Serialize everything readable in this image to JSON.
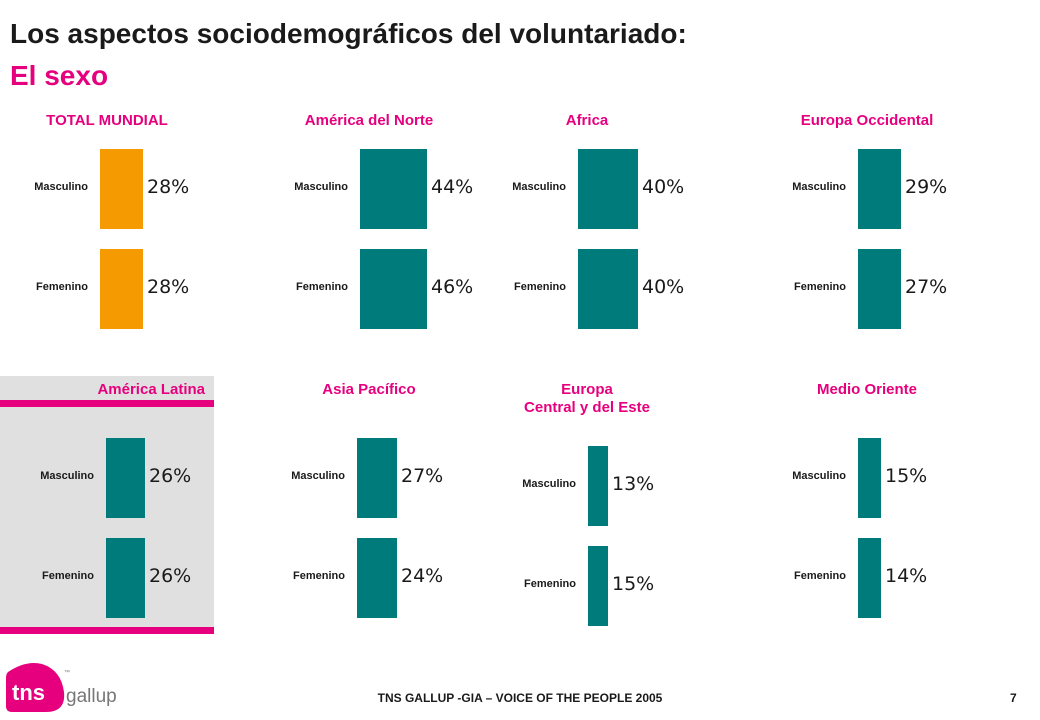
{
  "header": {
    "title": "Los aspectos sociodemográficos del voluntariado:",
    "subtitle": "El sexo"
  },
  "colors": {
    "accent": "#e6007e",
    "highlight_bar": "#f59a00",
    "bar": "#007b7b",
    "panel_highlight_bg": "#e0e0e0"
  },
  "chart_data": [
    {
      "type": "bar",
      "title": "TOTAL MUNDIAL",
      "categories": [
        "Masculino",
        "Femenino"
      ],
      "values": [
        28,
        28
      ],
      "value_labels": [
        "28%",
        "28%"
      ],
      "color": "#f59a00"
    },
    {
      "type": "bar",
      "title": "América del Norte",
      "categories": [
        "Masculino",
        "Femenino"
      ],
      "values": [
        44,
        46
      ],
      "value_labels": [
        "44%",
        "46%"
      ],
      "color": "#007b7b"
    },
    {
      "type": "bar",
      "title": "Africa",
      "categories": [
        "Masculino",
        "Femenino"
      ],
      "values": [
        40,
        40
      ],
      "value_labels": [
        "40%",
        "40%"
      ],
      "color": "#007b7b"
    },
    {
      "type": "bar",
      "title": "Europa Occidental",
      "categories": [
        "Masculino",
        "Femenino"
      ],
      "values": [
        29,
        27
      ],
      "value_labels": [
        "29%",
        "27%"
      ],
      "color": "#007b7b"
    },
    {
      "type": "bar",
      "title": "América Latina",
      "highlighted": true,
      "categories": [
        "Masculino",
        "Femenino"
      ],
      "values": [
        26,
        26
      ],
      "value_labels": [
        "26%",
        "26%"
      ],
      "color": "#007b7b"
    },
    {
      "type": "bar",
      "title": "Asia Pacífico",
      "categories": [
        "Masculino",
        "Femenino"
      ],
      "values": [
        27,
        24
      ],
      "value_labels": [
        "27%",
        "24%"
      ],
      "color": "#007b7b"
    },
    {
      "type": "bar",
      "title": "Europa\nCentral y del Este",
      "categories": [
        "Masculino",
        "Femenino"
      ],
      "values": [
        13,
        15
      ],
      "value_labels": [
        "13%",
        "15%"
      ],
      "color": "#007b7b"
    },
    {
      "type": "bar",
      "title": "Medio Oriente",
      "categories": [
        "Masculino",
        "Femenino"
      ],
      "values": [
        15,
        14
      ],
      "value_labels": [
        "15%",
        "14%"
      ],
      "color": "#007b7b"
    }
  ],
  "footer": {
    "text": "TNS GALLUP -GIA – VOICE OF THE PEOPLE 2005",
    "page_number": "7"
  },
  "logo": {
    "brand": "tns",
    "trademark": "™",
    "name": "gallup"
  }
}
